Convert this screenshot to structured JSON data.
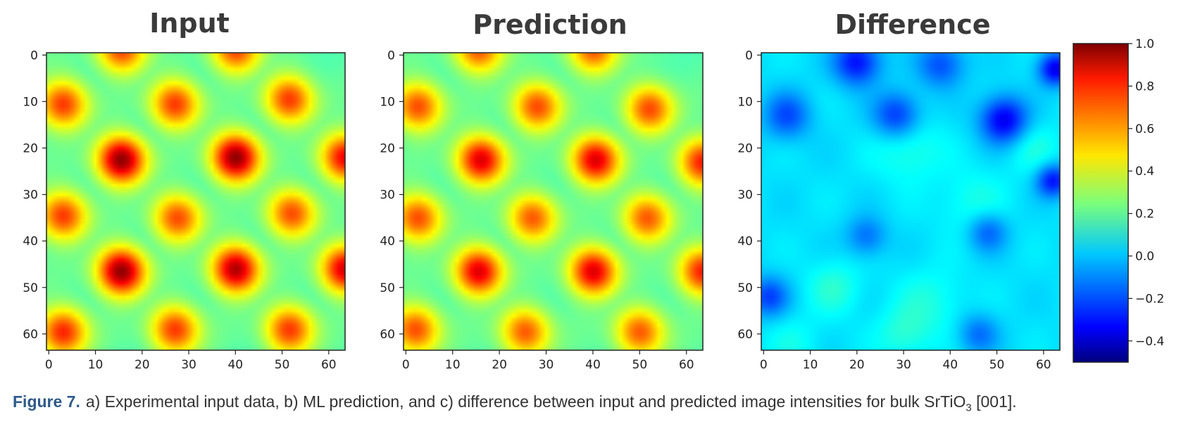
{
  "chart_data": [
    {
      "type": "heatmap",
      "title": "Input",
      "grid_size": [
        64,
        64
      ],
      "xlim": [
        0,
        63
      ],
      "ylim": [
        63,
        0
      ],
      "xticks": [
        0,
        10,
        20,
        30,
        40,
        50,
        60
      ],
      "yticks": [
        0,
        10,
        20,
        30,
        40,
        50,
        60
      ],
      "background_level": 0.2,
      "peaks": [
        {
          "x": 15.5,
          "y": 22.5,
          "v": 1.0
        },
        {
          "x": 40,
          "y": 22,
          "v": 1.0
        },
        {
          "x": 63.5,
          "y": 22,
          "v": 0.85
        },
        {
          "x": 15.5,
          "y": 46.5,
          "v": 1.0
        },
        {
          "x": 40,
          "y": 46,
          "v": 0.95
        },
        {
          "x": 63.5,
          "y": 46,
          "v": 0.9
        },
        {
          "x": 3,
          "y": 10.5,
          "v": 0.75
        },
        {
          "x": 27,
          "y": 10.5,
          "v": 0.75
        },
        {
          "x": 51.5,
          "y": 9.5,
          "v": 0.75
        },
        {
          "x": 3,
          "y": 34.5,
          "v": 0.75
        },
        {
          "x": 27.5,
          "y": 35,
          "v": 0.72
        },
        {
          "x": 52,
          "y": 34,
          "v": 0.72
        },
        {
          "x": 3,
          "y": 59.5,
          "v": 0.78
        },
        {
          "x": 27,
          "y": 59,
          "v": 0.75
        },
        {
          "x": 51.5,
          "y": 59,
          "v": 0.75
        },
        {
          "x": 15.5,
          "y": -1.5,
          "v": 0.75
        },
        {
          "x": 40,
          "y": -1.5,
          "v": 0.75
        }
      ]
    },
    {
      "type": "heatmap",
      "title": "Prediction",
      "grid_size": [
        64,
        64
      ],
      "xlim": [
        0,
        63
      ],
      "ylim": [
        63,
        0
      ],
      "xticks": [
        0,
        10,
        20,
        30,
        40,
        50,
        60
      ],
      "yticks": [
        0,
        10,
        20,
        30,
        40,
        50,
        60
      ],
      "background_level": 0.2,
      "peaks": [
        {
          "x": 16,
          "y": 22.5,
          "v": 0.88
        },
        {
          "x": 40.5,
          "y": 22.5,
          "v": 0.88
        },
        {
          "x": 63.5,
          "y": 23,
          "v": 0.8
        },
        {
          "x": 15.5,
          "y": 46.5,
          "v": 0.88
        },
        {
          "x": 40,
          "y": 46.5,
          "v": 0.88
        },
        {
          "x": 63.5,
          "y": 46.5,
          "v": 0.8
        },
        {
          "x": 2.5,
          "y": 11,
          "v": 0.72
        },
        {
          "x": 28,
          "y": 11,
          "v": 0.72
        },
        {
          "x": 52,
          "y": 11.5,
          "v": 0.72
        },
        {
          "x": 2.5,
          "y": 35,
          "v": 0.72
        },
        {
          "x": 27,
          "y": 35,
          "v": 0.7
        },
        {
          "x": 51.5,
          "y": 35,
          "v": 0.7
        },
        {
          "x": 2,
          "y": 59,
          "v": 0.72
        },
        {
          "x": 25.5,
          "y": 59.5,
          "v": 0.7
        },
        {
          "x": 50,
          "y": 59.5,
          "v": 0.7
        },
        {
          "x": 15.5,
          "y": -1.5,
          "v": 0.72
        },
        {
          "x": 40,
          "y": -1.5,
          "v": 0.72
        }
      ]
    },
    {
      "type": "heatmap",
      "title": "Difference",
      "grid_size": [
        64,
        64
      ],
      "xlim": [
        0,
        63
      ],
      "ylim": [
        63,
        0
      ],
      "xticks": [
        0,
        10,
        20,
        30,
        40,
        50,
        60
      ],
      "yticks": [
        0,
        10,
        20,
        30,
        40,
        50,
        60
      ],
      "background_level": 0.02,
      "blobs": [
        {
          "x": 20,
          "y": 1.5,
          "v": -0.3,
          "s": 3.5
        },
        {
          "x": 38,
          "y": 2,
          "v": -0.2,
          "s": 3.5
        },
        {
          "x": 62.5,
          "y": 3,
          "v": -0.35,
          "s": 2.5
        },
        {
          "x": 5,
          "y": 13,
          "v": -0.2,
          "s": 3.5
        },
        {
          "x": 28.5,
          "y": 13,
          "v": -0.25,
          "s": 3.5
        },
        {
          "x": 51.5,
          "y": 14,
          "v": -0.35,
          "s": 3.5
        },
        {
          "x": 62,
          "y": 27,
          "v": -0.3,
          "s": 2.5
        },
        {
          "x": 22,
          "y": 39,
          "v": -0.15,
          "s": 3
        },
        {
          "x": 48,
          "y": 38,
          "v": -0.18,
          "s": 3
        },
        {
          "x": 1,
          "y": 52,
          "v": -0.22,
          "s": 3
        },
        {
          "x": 46,
          "y": 60,
          "v": -0.15,
          "s": 3
        },
        {
          "x": 31,
          "y": 20,
          "v": 0.12,
          "s": 5
        },
        {
          "x": 45,
          "y": 32,
          "v": 0.1,
          "s": 5
        },
        {
          "x": 15,
          "y": 50,
          "v": 0.12,
          "s": 4
        },
        {
          "x": 36,
          "y": 53,
          "v": 0.1,
          "s": 5
        },
        {
          "x": 58,
          "y": 20,
          "v": 0.1,
          "s": 4
        },
        {
          "x": 30,
          "y": 60,
          "v": 0.12,
          "s": 4
        },
        {
          "x": 6,
          "y": 62,
          "v": 0.08,
          "s": 4
        }
      ]
    }
  ],
  "colorbar": {
    "colormap": "jet",
    "vmin": -0.5,
    "vmax": 1.0,
    "ticks": [
      "1.0",
      "0.8",
      "0.6",
      "0.4",
      "0.2",
      "0.0",
      "−0.2",
      "−0.4"
    ],
    "tick_values": [
      1.0,
      0.8,
      0.6,
      0.4,
      0.2,
      0.0,
      -0.2,
      -0.4
    ]
  },
  "caption": {
    "lead": "Figure 7.",
    "text": "a) Experimental input data, b) ML prediction, and c) difference between input and predicted image intensities for bulk SrTiO",
    "subscript": "3",
    "tail": " [001]."
  }
}
